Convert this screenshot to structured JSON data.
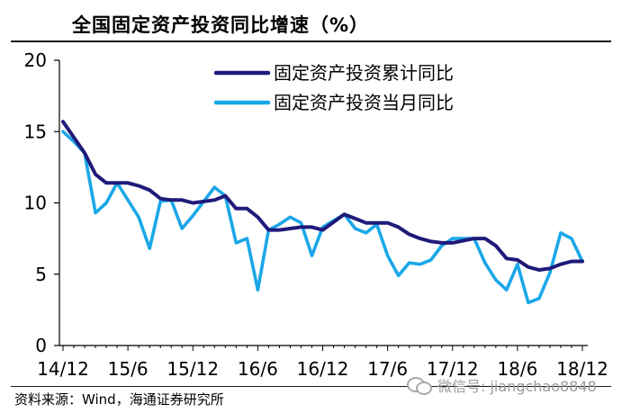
{
  "header": {
    "title": "全国固定资产投资同比增速（%）"
  },
  "footer": {
    "source": "资料来源：Wind，海通证券研究所",
    "watermark": "微信号: jiangchao8848"
  },
  "chart_data": {
    "type": "line",
    "title": "全国固定资产投资同比增速（%）",
    "xlabel": "",
    "ylabel": "",
    "ylim": [
      0,
      20
    ],
    "yticks": [
      0,
      5,
      10,
      15,
      20
    ],
    "x_tick_labels": [
      "14/12",
      "15/6",
      "15/12",
      "16/6",
      "16/12",
      "17/6",
      "17/12",
      "18/6",
      "18/12"
    ],
    "x_tick_months": [
      0,
      6,
      12,
      18,
      24,
      30,
      36,
      42,
      48
    ],
    "grid": false,
    "legend_position": "top-right",
    "colors": {
      "cumulative": "#1f1a7a",
      "monthly": "#1aa7e8",
      "axis": "#000000"
    },
    "series": [
      {
        "name": "固定资产投资累计同比",
        "color": "#1f1a7a",
        "x": [
          0,
          2,
          3,
          4,
          5,
          6,
          7,
          8,
          9,
          10,
          11,
          12,
          14,
          15,
          16,
          17,
          18,
          19,
          20,
          21,
          22,
          23,
          24,
          26,
          27,
          28,
          29,
          30,
          31,
          32,
          33,
          34,
          35,
          36,
          38,
          39,
          40,
          41,
          42,
          43,
          44,
          45,
          46,
          47,
          48
        ],
        "y": [
          15.7,
          13.5,
          12.0,
          11.4,
          11.4,
          11.4,
          11.2,
          10.9,
          10.3,
          10.2,
          10.2,
          10.0,
          10.2,
          10.5,
          9.6,
          9.6,
          9.0,
          8.1,
          8.1,
          8.2,
          8.3,
          8.3,
          8.1,
          9.2,
          8.9,
          8.6,
          8.6,
          8.6,
          8.3,
          7.8,
          7.5,
          7.3,
          7.2,
          7.2,
          7.5,
          7.5,
          7.0,
          6.1,
          6.0,
          5.5,
          5.3,
          5.4,
          5.7,
          5.9,
          5.9
        ]
      },
      {
        "name": "固定资产投资当月同比",
        "color": "#1aa7e8",
        "x": [
          0,
          1,
          2,
          3,
          4,
          5,
          6,
          7,
          8,
          9,
          10,
          11,
          12,
          14,
          15,
          16,
          17,
          18,
          19,
          20,
          21,
          22,
          23,
          24,
          26,
          27,
          28,
          29,
          30,
          31,
          32,
          33,
          34,
          35,
          36,
          38,
          39,
          40,
          41,
          42,
          43,
          44,
          45,
          46,
          47,
          48
        ],
        "y": [
          15.0,
          14.3,
          13.5,
          9.3,
          10.0,
          11.4,
          10.2,
          9.0,
          6.8,
          10.1,
          10.2,
          8.2,
          9.1,
          11.1,
          10.5,
          7.2,
          7.5,
          3.9,
          8.1,
          8.5,
          9.0,
          8.6,
          6.3,
          8.3,
          9.2,
          8.2,
          7.9,
          8.5,
          6.3,
          4.9,
          5.8,
          5.7,
          6.0,
          7.0,
          7.5,
          7.5,
          5.8,
          4.6,
          3.9,
          5.7,
          3.0,
          3.3,
          5.1,
          7.9,
          7.5,
          5.9
        ]
      }
    ]
  }
}
